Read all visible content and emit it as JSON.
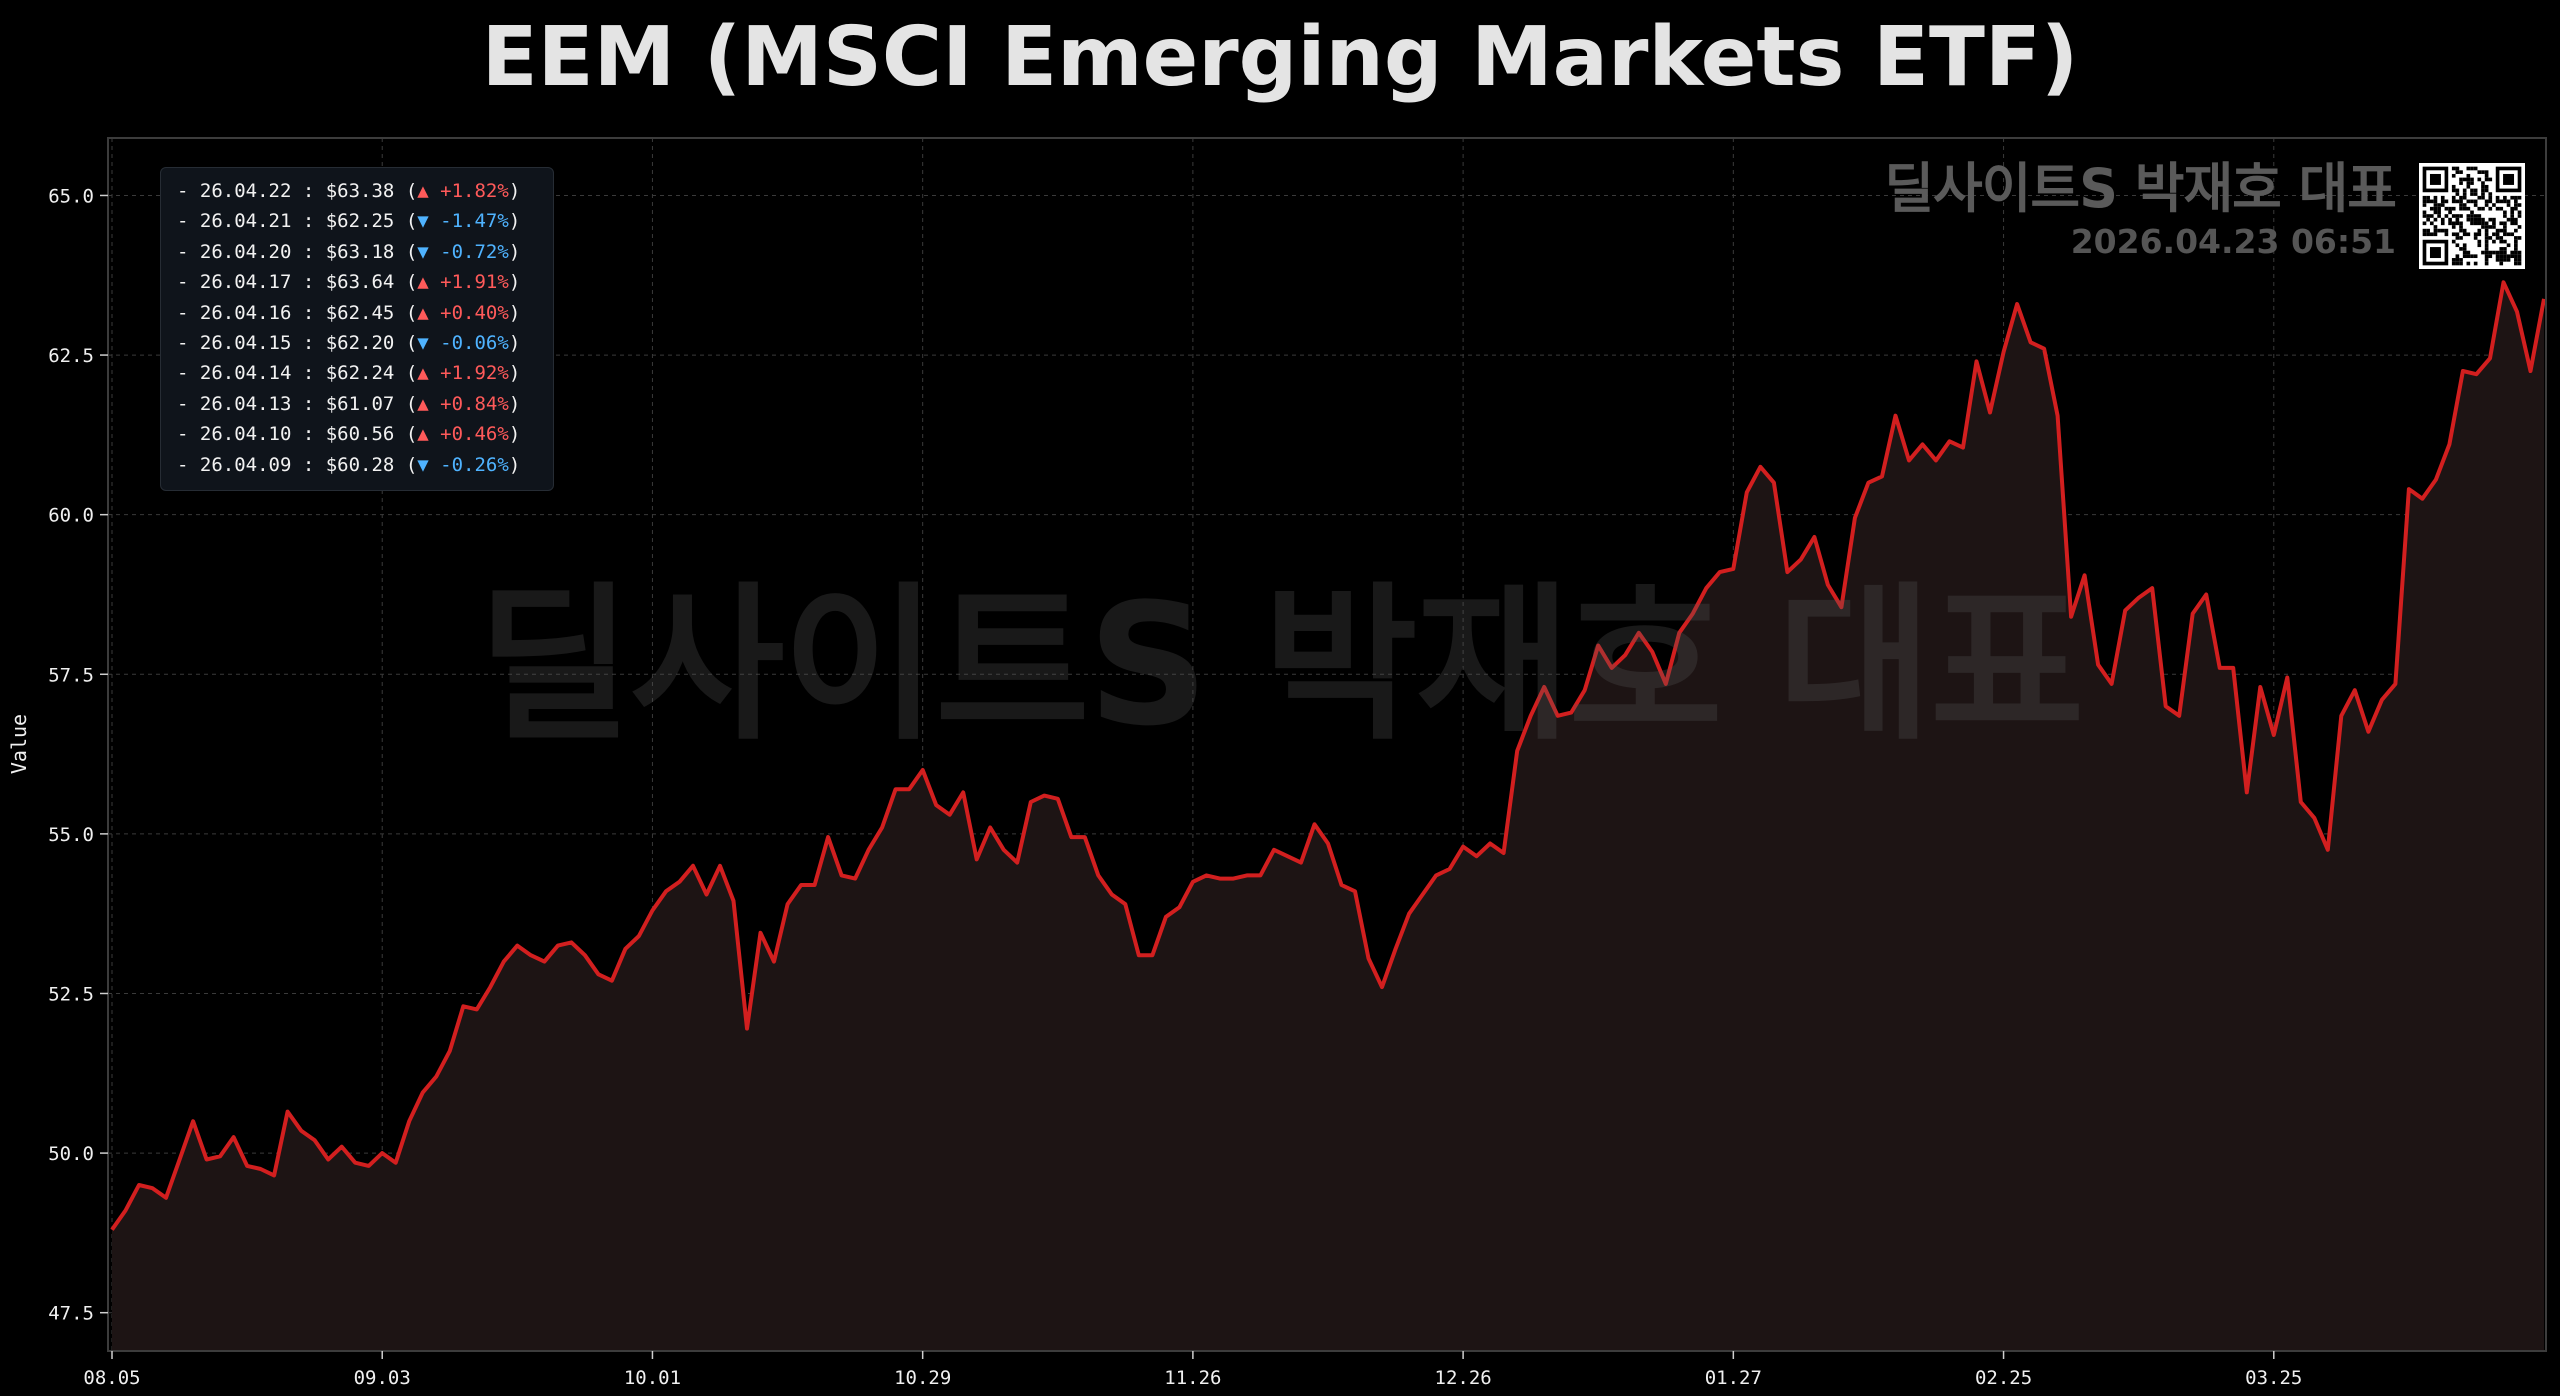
{
  "page": {
    "title": "EEM (MSCI Emerging Markets ETF)",
    "watermark_name": "딜사이트S 박재호 대표",
    "watermark_timestamp": "2026.04.23 06:51",
    "qr_code": "qr-code-icon"
  },
  "legend": {
    "items": [
      {
        "date": "26.04.22",
        "price": "$63.38",
        "arrow": "▲",
        "change": "+1.82%",
        "direction": "up"
      },
      {
        "date": "26.04.21",
        "price": "$62.25",
        "arrow": "▼",
        "change": "-1.47%",
        "direction": "down"
      },
      {
        "date": "26.04.20",
        "price": "$63.18",
        "arrow": "▼",
        "change": "-0.72%",
        "direction": "down"
      },
      {
        "date": "26.04.17",
        "price": "$63.64",
        "arrow": "▲",
        "change": "+1.91%",
        "direction": "up"
      },
      {
        "date": "26.04.16",
        "price": "$62.45",
        "arrow": "▲",
        "change": "+0.40%",
        "direction": "up"
      },
      {
        "date": "26.04.15",
        "price": "$62.20",
        "arrow": "▼",
        "change": "-0.06%",
        "direction": "down"
      },
      {
        "date": "26.04.14",
        "price": "$62.24",
        "arrow": "▲",
        "change": "+1.92%",
        "direction": "up"
      },
      {
        "date": "26.04.13",
        "price": "$61.07",
        "arrow": "▲",
        "change": "+0.84%",
        "direction": "up"
      },
      {
        "date": "26.04.10",
        "price": "$60.56",
        "arrow": "▲",
        "change": "+0.46%",
        "direction": "up"
      },
      {
        "date": "26.04.09",
        "price": "$60.28",
        "arrow": "▼",
        "change": "-0.26%",
        "direction": "down"
      }
    ]
  },
  "colors": {
    "line": "#d21f1f",
    "fill": "#1d1414",
    "up": "#ff5a5a",
    "down": "#4fb3ff",
    "grid": "#3a3a3a",
    "background": "#000000"
  },
  "chart_data": {
    "type": "area",
    "title": "EEM (MSCI Emerging Markets ETF)",
    "xlabel": "",
    "ylabel": "Value",
    "ylim": [
      46.9,
      65.9
    ],
    "yticks": [
      47.5,
      50.0,
      52.5,
      55.0,
      57.5,
      60.0,
      62.5,
      65.0
    ],
    "ytick_labels": [
      "47.5",
      "50.0",
      "52.5",
      "55.0",
      "57.5",
      "60.0",
      "62.5",
      "65.0"
    ],
    "xticks": [
      {
        "index": 0,
        "label": "08.05"
      },
      {
        "index": 20,
        "label": "09.03"
      },
      {
        "index": 40,
        "label": "10.01"
      },
      {
        "index": 60,
        "label": "10.29"
      },
      {
        "index": 80,
        "label": "11.26"
      },
      {
        "index": 100,
        "label": "12.26"
      },
      {
        "index": 120,
        "label": "01.27"
      },
      {
        "index": 140,
        "label": "02.25"
      },
      {
        "index": 160,
        "label": "03.25"
      }
    ],
    "grid": true,
    "series": [
      {
        "values": [
          48.8,
          49.1,
          49.5,
          49.45,
          49.3,
          49.9,
          50.5,
          49.9,
          49.95,
          50.25,
          49.8,
          49.75,
          49.65,
          50.65,
          50.35,
          50.2,
          49.9,
          50.1,
          49.85,
          49.8,
          50.0,
          49.85,
          50.5,
          50.95,
          51.2,
          51.6,
          52.3,
          52.25,
          52.6,
          53.0,
          53.25,
          53.1,
          53.0,
          53.25,
          53.3,
          53.1,
          52.8,
          52.7,
          53.2,
          53.4,
          53.8,
          54.1,
          54.25,
          54.5,
          54.05,
          54.5,
          53.95,
          51.95,
          53.45,
          53.0,
          53.9,
          54.2,
          54.2,
          54.95,
          54.35,
          54.3,
          54.75,
          55.1,
          55.7,
          55.7,
          56.0,
          55.45,
          55.3,
          55.65,
          54.6,
          55.1,
          54.75,
          54.55,
          55.5,
          55.6,
          55.55,
          54.95,
          54.95,
          54.35,
          54.05,
          53.9,
          53.1,
          53.1,
          53.7,
          53.85,
          54.25,
          54.35,
          54.3,
          54.3,
          54.35,
          54.35,
          54.75,
          54.65,
          54.55,
          55.15,
          54.85,
          54.2,
          54.1,
          53.05,
          52.6,
          53.2,
          53.75,
          54.05,
          54.35,
          54.45,
          54.8,
          54.65,
          54.85,
          54.7,
          56.3,
          56.85,
          57.3,
          56.85,
          56.9,
          57.25,
          57.95,
          57.6,
          57.8,
          58.15,
          57.85,
          57.35,
          58.15,
          58.45,
          58.85,
          59.1,
          59.15,
          60.35,
          60.75,
          60.5,
          59.1,
          59.3,
          59.65,
          58.9,
          58.55,
          59.95,
          60.5,
          60.6,
          61.55,
          60.85,
          61.1,
          60.85,
          61.15,
          61.05,
          62.4,
          61.6,
          62.55,
          63.3,
          62.7,
          62.6,
          61.55,
          58.4,
          59.05,
          57.65,
          57.35,
          58.5,
          58.7,
          58.85,
          57.0,
          56.85,
          58.45,
          58.75,
          57.6,
          57.6,
          55.65,
          57.3,
          56.55,
          57.45,
          55.5,
          55.25,
          54.75,
          56.85,
          57.25,
          56.6,
          57.1,
          57.35,
          60.4,
          60.25,
          60.55,
          61.1,
          62.25,
          62.2,
          62.45,
          63.64,
          63.18,
          62.25,
          63.38
        ]
      }
    ]
  }
}
